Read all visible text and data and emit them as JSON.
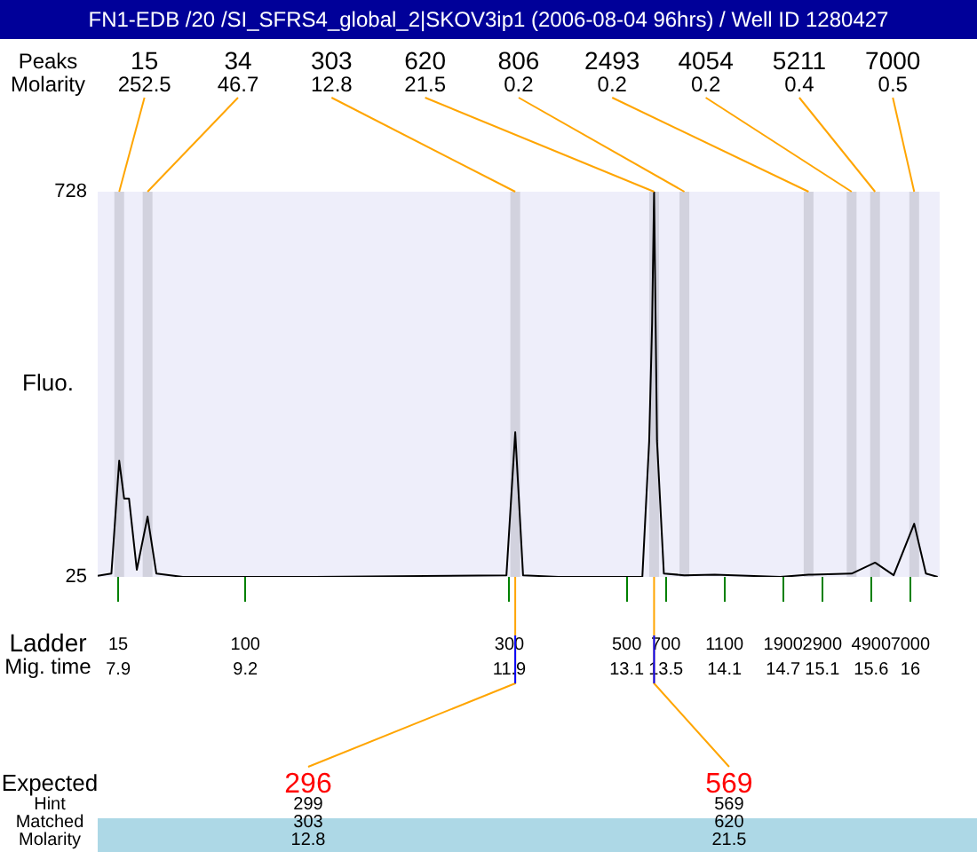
{
  "chart_data": {
    "type": "line",
    "title": "FN1-EDB /20 /SI_SFRS4_global_2|SKOV3ip1 (2006-08-04 96hrs) / Well ID 1280427",
    "xlabel": "Mig. time",
    "ylabel": "Fluo.",
    "series": [
      {
        "color": "#000000",
        "x": [
          7.69,
          7.83,
          7.91,
          7.96,
          8.01,
          8.09,
          8.2,
          8.29,
          8.56,
          9.91,
          11.87,
          11.96,
          12.04,
          12.4,
          13.26,
          13.33,
          13.36,
          13.38,
          13.41,
          13.48,
          13.69,
          14.0,
          14.67,
          14.96,
          15.0,
          15.4,
          15.64,
          15.83,
          16.04,
          16.16,
          16.28
        ],
        "values": [
          27,
          31,
          237,
          168,
          168,
          38,
          135,
          31,
          25,
          25,
          28,
          289,
          28,
          25,
          25,
          273,
          490,
          728,
          273,
          31,
          28,
          29,
          25,
          29,
          29,
          31,
          51,
          28,
          122,
          31,
          25
        ]
      }
    ],
    "xlim": [
      7.69,
      16.3
    ],
    "xticks": [
      7.9,
      9.2,
      11.9,
      13.1,
      13.5,
      14.1,
      14.7,
      15.1,
      15.6,
      16
    ],
    "ylim": [
      25,
      728
    ],
    "yticks": [
      25,
      728
    ],
    "grid": false,
    "legend": false,
    "marker": "none",
    "bands": [
      {
        "axis": "x",
        "from": 7.86,
        "to": 7.96,
        "color": "#d2d2de"
      },
      {
        "axis": "x",
        "from": 8.15,
        "to": 8.25,
        "color": "#d2d2de"
      },
      {
        "axis": "x",
        "from": 11.91,
        "to": 12.01,
        "color": "#d2d2de"
      },
      {
        "axis": "x",
        "from": 13.33,
        "to": 13.43,
        "color": "#d2d2de"
      },
      {
        "axis": "x",
        "from": 13.64,
        "to": 13.74,
        "color": "#d2d2de"
      },
      {
        "axis": "x",
        "from": 14.91,
        "to": 15.01,
        "color": "#d2d2de"
      },
      {
        "axis": "x",
        "from": 15.35,
        "to": 15.45,
        "color": "#d2d2de"
      },
      {
        "axis": "x",
        "from": 15.59,
        "to": 15.69,
        "color": "#d2d2de"
      },
      {
        "axis": "x",
        "from": 15.99,
        "to": 16.09,
        "color": "#d2d2de"
      }
    ],
    "annotations": [
      "Peaks",
      "Molarity",
      {
        "text": "15",
        "x": 7.91,
        "y": 728
      },
      "252.5",
      {
        "text": "34",
        "x": 8.2,
        "y": 728
      },
      "46.7",
      {
        "text": "303",
        "x": 11.96,
        "y": 728
      },
      "12.8",
      {
        "text": "620",
        "x": 13.38,
        "y": 728
      },
      "21.5",
      {
        "text": "806",
        "x": 13.69,
        "y": 728
      },
      "0.2",
      {
        "text": "2493",
        "x": 14.96,
        "y": 728
      },
      "0.2",
      {
        "text": "4054",
        "x": 15.4,
        "y": 728
      },
      "0.2",
      {
        "text": "5211",
        "x": 15.64,
        "y": 728
      },
      "0.4",
      {
        "text": "7000",
        "x": 16.04,
        "y": 728
      },
      "0.5",
      "Ladder",
      "15",
      "100",
      "300",
      "500",
      "700",
      "1100",
      "1900",
      "2900",
      "4900",
      "7000",
      "Expected",
      "Hint",
      "Matched",
      "Molarity",
      {
        "text": "296",
        "x": 11.96,
        "y": 25
      },
      "299",
      "303",
      "12.8",
      {
        "text": "569",
        "x": 13.38,
        "y": 25
      },
      "569",
      "620",
      "21.5"
    ]
  }
}
